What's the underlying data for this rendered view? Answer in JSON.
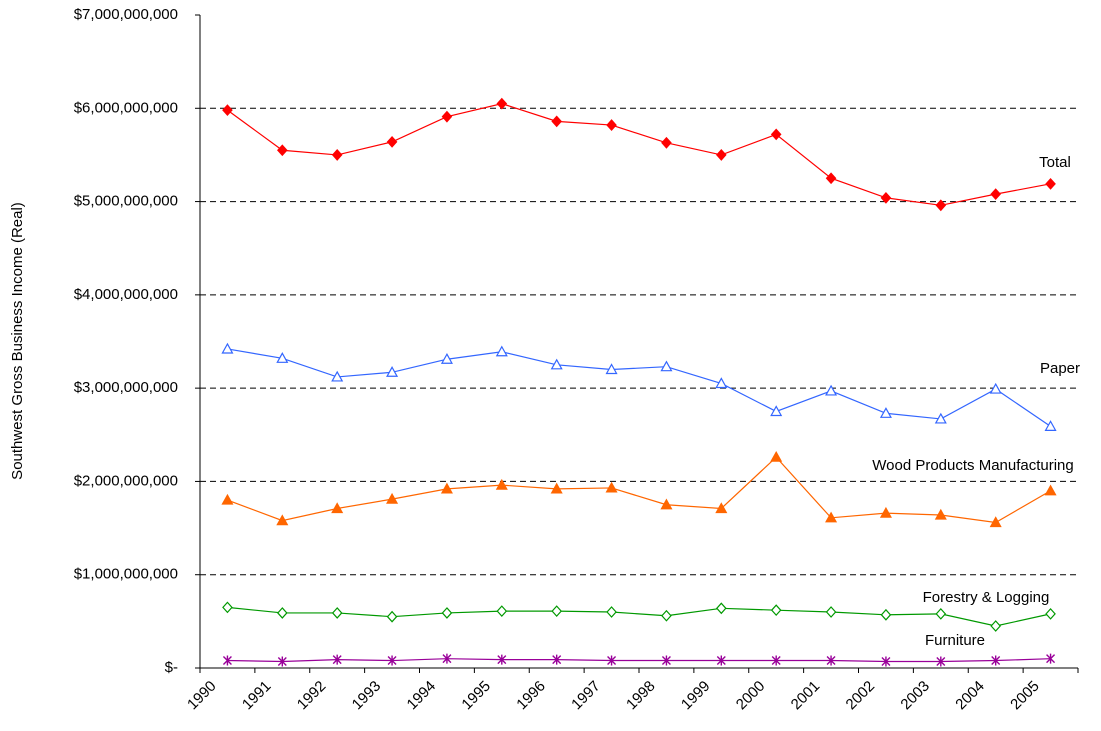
{
  "chart_data": {
    "type": "line",
    "y_label": "Southwest Gross Business Income (Real)",
    "categories": [
      "1990",
      "1991",
      "1992",
      "1993",
      "1994",
      "1995",
      "1996",
      "1997",
      "1998",
      "1999",
      "2000",
      "2001",
      "2002",
      "2003",
      "2004",
      "2005"
    ],
    "series": [
      {
        "name": "Total",
        "color": "#ff0000",
        "marker": "diamond",
        "filled": true,
        "values": [
          5980000000,
          5550000000,
          5500000000,
          5640000000,
          5910000000,
          6050000000,
          5860000000,
          5820000000,
          5630000000,
          5500000000,
          5720000000,
          5250000000,
          5040000000,
          4960000000,
          5080000000,
          5190000000
        ]
      },
      {
        "name": "Paper",
        "color": "#3366ff",
        "marker": "triangle",
        "filled": false,
        "values": [
          3420000000,
          3320000000,
          3120000000,
          3170000000,
          3310000000,
          3390000000,
          3250000000,
          3200000000,
          3230000000,
          3050000000,
          2750000000,
          2970000000,
          2730000000,
          2670000000,
          2990000000,
          2590000000
        ]
      },
      {
        "name": "Wood Products Manufacturing",
        "color": "#ff6600",
        "marker": "triangle",
        "filled": true,
        "values": [
          1800000000,
          1580000000,
          1710000000,
          1810000000,
          1920000000,
          1960000000,
          1920000000,
          1930000000,
          1750000000,
          1710000000,
          2260000000,
          1610000000,
          1660000000,
          1640000000,
          1560000000,
          1900000000
        ]
      },
      {
        "name": "Forestry & Logging",
        "color": "#009900",
        "marker": "diamond",
        "filled": false,
        "values": [
          650000000,
          590000000,
          590000000,
          550000000,
          590000000,
          610000000,
          610000000,
          600000000,
          560000000,
          640000000,
          620000000,
          600000000,
          570000000,
          580000000,
          450000000,
          580000000
        ]
      },
      {
        "name": "Furniture",
        "color": "#990099",
        "marker": "asterisk",
        "filled": false,
        "values": [
          80000000,
          70000000,
          90000000,
          80000000,
          100000000,
          90000000,
          90000000,
          80000000,
          80000000,
          80000000,
          80000000,
          80000000,
          70000000,
          70000000,
          80000000,
          100000000
        ]
      }
    ],
    "ylim": [
      0,
      7000000000
    ],
    "yticks": [
      {
        "value": 0,
        "label": "$-"
      },
      {
        "value": 1000000000,
        "label": "$1,000,000,000"
      },
      {
        "value": 2000000000,
        "label": "$2,000,000,000"
      },
      {
        "value": 3000000000,
        "label": "$3,000,000,000"
      },
      {
        "value": 4000000000,
        "label": "$4,000,000,000"
      },
      {
        "value": 5000000000,
        "label": "$5,000,000,000"
      },
      {
        "value": 6000000000,
        "label": "$6,000,000,000"
      },
      {
        "value": 7000000000,
        "label": "$7,000,000,000"
      }
    ],
    "grid": true
  }
}
